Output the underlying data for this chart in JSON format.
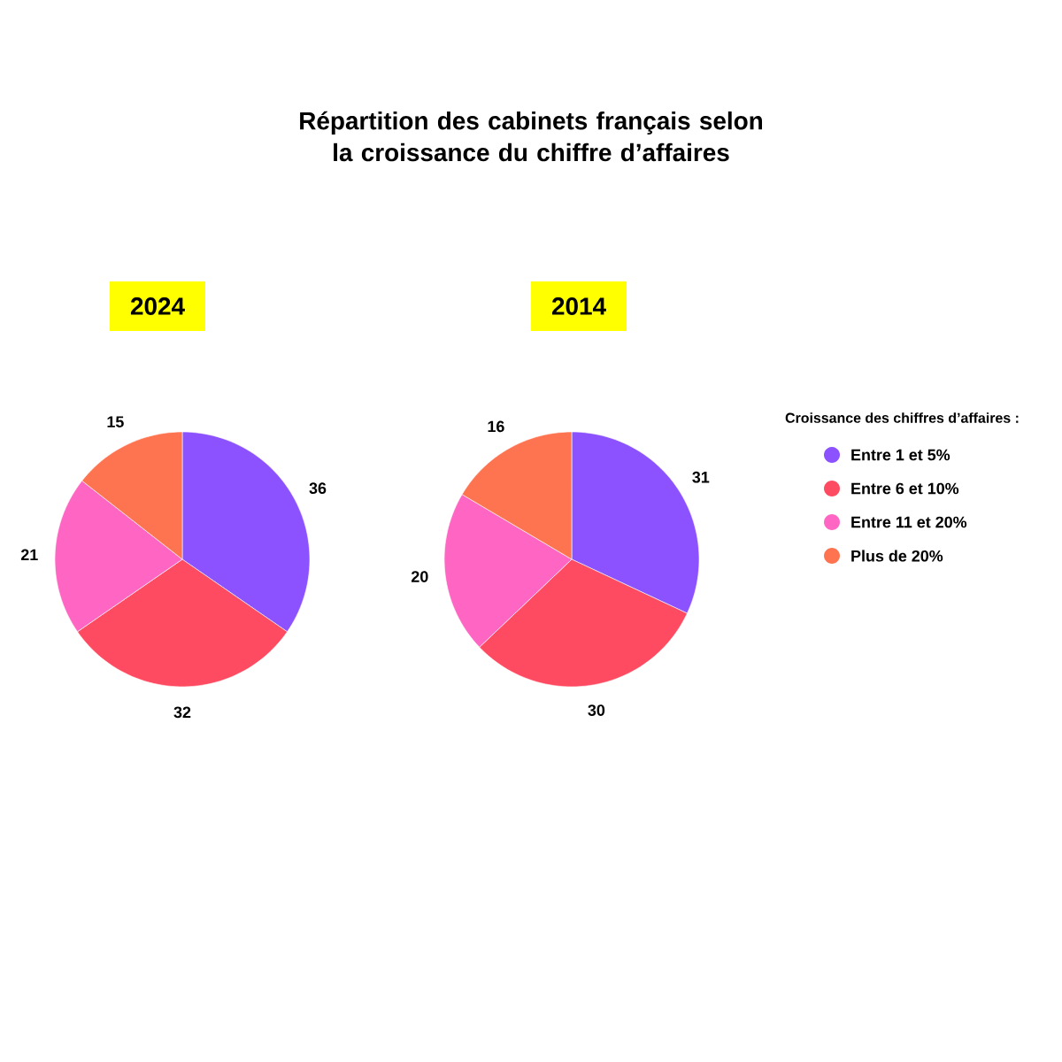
{
  "chart_data": [
    {
      "type": "other",
      "title": "Répartition des cabinets français selon la croissance du chiffre d’affaires"
    },
    {
      "type": "pie",
      "subtitle": "2024",
      "categories": [
        "Entre 1 et 5%",
        "Entre 6 et 10%",
        "Entre 11 et 20%",
        "Plus de 20%"
      ],
      "values": [
        36,
        32,
        21,
        15
      ],
      "colors": [
        "#8c52ff",
        "#ff4b61",
        "#ff66c4",
        "#ff7450"
      ],
      "data_labels": true,
      "legend": "right",
      "legend_title": "Croissance des chiffres d’affaires :"
    },
    {
      "type": "pie",
      "subtitle": "2014",
      "categories": [
        null,
        null,
        null,
        null
      ],
      "values": [
        31,
        30,
        20,
        16
      ],
      "colors": [
        "#8c52ff",
        "#ff4b61",
        "#ff66c4",
        "#ff7450"
      ],
      "data_labels": true
    }
  ]
}
